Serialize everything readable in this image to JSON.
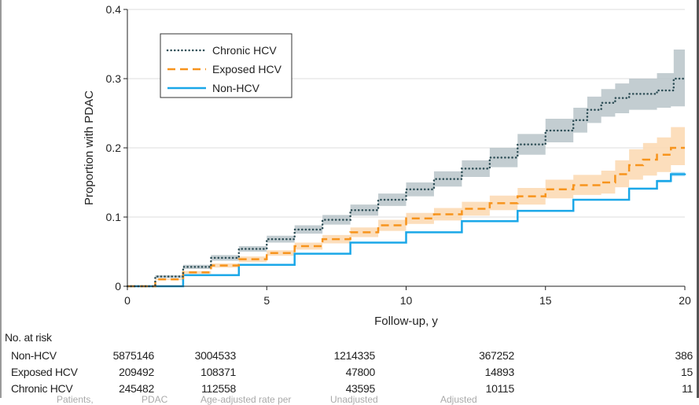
{
  "chart_data": {
    "type": "line",
    "xlabel": "Follow-up, y",
    "ylabel": "Proportion with PDAC",
    "xlim": [
      0,
      20
    ],
    "ylim": [
      0,
      0.4
    ],
    "xticks": [
      0,
      5,
      10,
      15,
      20
    ],
    "yticks": [
      0,
      0.1,
      0.2,
      0.3,
      0.4
    ],
    "ytick_labels": [
      "0",
      "0.1",
      "0.2",
      "0.3",
      "0.4"
    ],
    "grid": "horizontal",
    "legend_position": "top-left",
    "series": [
      {
        "name": "Chronic HCV",
        "color": "#2f4f57",
        "band_color": "#b9c4c9",
        "style": "dotted",
        "x": [
          0,
          1,
          2,
          3,
          4,
          5,
          6,
          7,
          8,
          9,
          10,
          11,
          12,
          13,
          14,
          15,
          16,
          16.5,
          17,
          17.5,
          18,
          19,
          19.5,
          19.6,
          20
        ],
        "y": [
          0,
          0.014,
          0.028,
          0.041,
          0.054,
          0.068,
          0.082,
          0.096,
          0.11,
          0.125,
          0.14,
          0.155,
          0.17,
          0.186,
          0.205,
          0.225,
          0.24,
          0.255,
          0.265,
          0.272,
          0.278,
          0.283,
          0.283,
          0.3,
          0.3
        ],
        "lower": [
          0,
          0.012,
          0.025,
          0.037,
          0.05,
          0.063,
          0.076,
          0.089,
          0.102,
          0.116,
          0.13,
          0.144,
          0.158,
          0.172,
          0.19,
          0.208,
          0.222,
          0.236,
          0.245,
          0.25,
          0.255,
          0.258,
          0.26,
          0.26,
          0.26
        ],
        "upper": [
          0,
          0.016,
          0.031,
          0.045,
          0.058,
          0.073,
          0.088,
          0.103,
          0.118,
          0.134,
          0.15,
          0.166,
          0.182,
          0.2,
          0.22,
          0.242,
          0.258,
          0.274,
          0.285,
          0.293,
          0.3,
          0.308,
          0.308,
          0.342,
          0.342
        ]
      },
      {
        "name": "Exposed HCV",
        "color": "#f7941d",
        "band_color": "#fbd8b0",
        "style": "dashed",
        "x": [
          0,
          1,
          2,
          3,
          4,
          5,
          6,
          7,
          8,
          9,
          10,
          11,
          12,
          13,
          14,
          15,
          16,
          17,
          17.5,
          18,
          18.5,
          19,
          19.5,
          20
        ],
        "y": [
          0,
          0.01,
          0.02,
          0.03,
          0.039,
          0.048,
          0.058,
          0.068,
          0.078,
          0.088,
          0.098,
          0.104,
          0.112,
          0.12,
          0.13,
          0.14,
          0.146,
          0.15,
          0.162,
          0.175,
          0.183,
          0.19,
          0.2,
          0.2
        ],
        "lower": [
          0,
          0.009,
          0.018,
          0.027,
          0.035,
          0.044,
          0.053,
          0.062,
          0.071,
          0.08,
          0.09,
          0.095,
          0.102,
          0.11,
          0.118,
          0.127,
          0.132,
          0.134,
          0.143,
          0.154,
          0.16,
          0.165,
          0.175,
          0.175
        ],
        "upper": [
          0,
          0.011,
          0.022,
          0.033,
          0.043,
          0.052,
          0.063,
          0.074,
          0.085,
          0.096,
          0.106,
          0.113,
          0.122,
          0.131,
          0.142,
          0.154,
          0.161,
          0.167,
          0.182,
          0.198,
          0.207,
          0.215,
          0.23,
          0.23
        ]
      },
      {
        "name": "Non-HCV",
        "color": "#1aa7e8",
        "band_color": "#a9dcf5",
        "style": "solid",
        "x": [
          0,
          2,
          4,
          6,
          8,
          10,
          12,
          14,
          16,
          18,
          19,
          19.5,
          20
        ],
        "y": [
          0,
          0.016,
          0.031,
          0.047,
          0.063,
          0.078,
          0.094,
          0.109,
          0.125,
          0.141,
          0.152,
          0.162,
          0.163
        ],
        "lower": [
          0,
          0.0155,
          0.0305,
          0.0465,
          0.0625,
          0.0775,
          0.0935,
          0.1085,
          0.1243,
          0.14,
          0.15,
          0.159,
          0.16
        ],
        "upper": [
          0,
          0.0165,
          0.0315,
          0.0475,
          0.0635,
          0.0785,
          0.0945,
          0.1095,
          0.1257,
          0.142,
          0.154,
          0.165,
          0.166
        ]
      }
    ]
  },
  "risk_table": {
    "title": "No. at risk",
    "rows": [
      {
        "label": "Non-HCV",
        "values": [
          "5875146",
          "3004533",
          "1214335",
          "367252",
          "386"
        ]
      },
      {
        "label": "Exposed HCV",
        "values": [
          "209492",
          "108371",
          "47800",
          "14893",
          "15"
        ]
      },
      {
        "label": "Chronic HCV",
        "values": [
          "245482",
          "112558",
          "43595",
          "10115",
          "11"
        ]
      }
    ]
  },
  "cut_off_row": [
    "Patients,",
    "PDAC",
    "Age-adjusted rate per",
    "Unadjusted",
    "Adjusted"
  ]
}
